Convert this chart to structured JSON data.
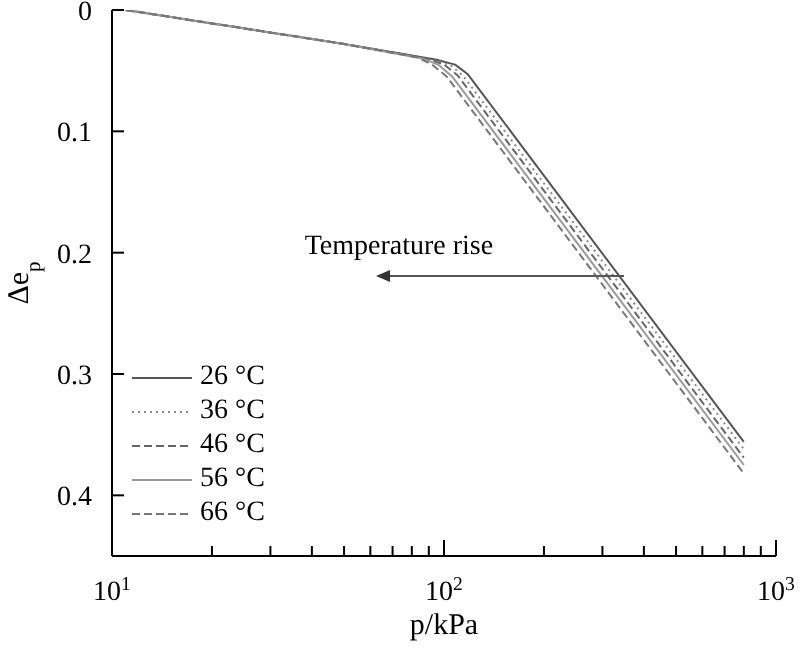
{
  "chart_data": {
    "type": "line",
    "xlabel": "p/kPa",
    "ylabel": "Δe$_{p}$",
    "log": "x",
    "legend": "bottom left",
    "marker": "none",
    "xlim": [
      10,
      1000
    ],
    "ylim": [
      0.45,
      0
    ],
    "xticks": [
      {
        "value": 10,
        "label": "10$^{1}$"
      },
      {
        "value": 20,
        "label": null
      },
      {
        "value": 30,
        "label": null
      },
      {
        "value": 40,
        "label": null
      },
      {
        "value": 50,
        "label": null
      },
      {
        "value": 60,
        "label": null
      },
      {
        "value": 70,
        "label": null
      },
      {
        "value": 80,
        "label": null
      },
      {
        "value": 90,
        "label": null
      },
      {
        "value": 100,
        "label": "10$^{2}$"
      },
      {
        "value": 200,
        "label": null
      },
      {
        "value": 300,
        "label": null
      },
      {
        "value": 400,
        "label": null
      },
      {
        "value": 500,
        "label": null
      },
      {
        "value": 600,
        "label": null
      },
      {
        "value": 700,
        "label": null
      },
      {
        "value": 800,
        "label": null
      },
      {
        "value": 900,
        "label": null
      },
      {
        "value": 1000,
        "label": "10$^{3}$"
      }
    ],
    "yticks": [
      0,
      0.1,
      0.2,
      0.3,
      0.4
    ],
    "annotations": [
      {
        "text": "Temperature rise",
        "x": 350,
        "y": 0.22
      }
    ],
    "series": [
      {
        "name": "26 °C",
        "color": "#555555",
        "line_style": "solid",
        "x": [
          11,
          50,
          95,
          108,
          118,
          800
        ],
        "values": [
          0,
          0.028,
          0.041,
          0.045,
          0.053,
          0.356
        ]
      },
      {
        "name": "36 °C",
        "color": "#888888",
        "line_style": "dotted",
        "x": [
          11,
          50,
          92,
          104,
          114,
          800
        ],
        "values": [
          0,
          0.028,
          0.041,
          0.045,
          0.054,
          0.362
        ]
      },
      {
        "name": "46 °C",
        "color": "#666666",
        "line_style": "dashed",
        "x": [
          11,
          50,
          89,
          100,
          110,
          800
        ],
        "values": [
          0,
          0.028,
          0.04,
          0.045,
          0.054,
          0.369
        ]
      },
      {
        "name": "56 °C",
        "color": "#999999",
        "line_style": "solid",
        "x": [
          11,
          50,
          86,
          96,
          106,
          800
        ],
        "values": [
          0,
          0.028,
          0.04,
          0.045,
          0.055,
          0.375
        ]
      },
      {
        "name": "66 °C",
        "color": "#777777",
        "line_style": "dashed",
        "x": [
          11,
          50,
          83,
          92,
          102,
          800
        ],
        "values": [
          0,
          0.028,
          0.039,
          0.045,
          0.055,
          0.382
        ]
      }
    ]
  }
}
